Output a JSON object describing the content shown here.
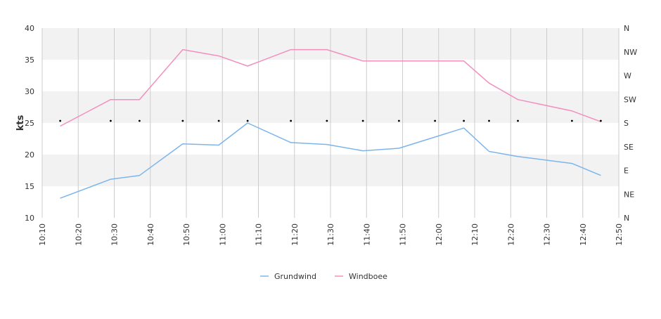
{
  "chart_data": {
    "type": "line",
    "title": "",
    "xlabel": "",
    "ylabel": "kts",
    "ylim": [
      10,
      40
    ],
    "yticks": [
      10,
      15,
      20,
      25,
      30,
      35,
      40
    ],
    "xlim": [
      "10:10",
      "12:50"
    ],
    "xticks": [
      "10:10",
      "10:20",
      "10:30",
      "10:40",
      "10:50",
      "11:00",
      "11:10",
      "11:20",
      "11:30",
      "11:40",
      "11:50",
      "12:00",
      "12:10",
      "12:20",
      "12:30",
      "12:40",
      "12:50"
    ],
    "y2_ticks": [
      "N",
      "NW",
      "W",
      "SW",
      "S",
      "SE",
      "E",
      "NE",
      "N"
    ],
    "x": [
      "10:15",
      "10:29",
      "10:37",
      "10:49",
      "10:59",
      "11:07",
      "11:19",
      "11:29",
      "11:39",
      "11:49",
      "11:59",
      "12:07",
      "12:14",
      "12:22",
      "12:37",
      "12:45"
    ],
    "series": [
      {
        "name": "Grundwind",
        "color": "#7cb5ec",
        "values": [
          13.1,
          16.1,
          16.7,
          21.7,
          21.5,
          25.0,
          21.9,
          21.6,
          20.6,
          21.0,
          null,
          24.2,
          20.5,
          19.7,
          18.6,
          16.7
        ]
      },
      {
        "name": "Windboee",
        "color": "#f28fbf",
        "values": [
          24.5,
          28.7,
          28.7,
          36.6,
          35.6,
          34.0,
          36.6,
          36.6,
          34.8,
          34.8,
          null,
          34.8,
          31.3,
          28.7,
          26.9,
          25.2
        ]
      }
    ],
    "direction_markers": {
      "x": [
        "10:15",
        "10:29",
        "10:37",
        "10:49",
        "10:59",
        "11:07",
        "11:19",
        "11:29",
        "11:39",
        "11:49",
        "11:59",
        "12:07",
        "12:14",
        "12:22",
        "12:37",
        "12:45"
      ],
      "value": "S"
    },
    "grid": true,
    "legend": "bottom-center"
  }
}
